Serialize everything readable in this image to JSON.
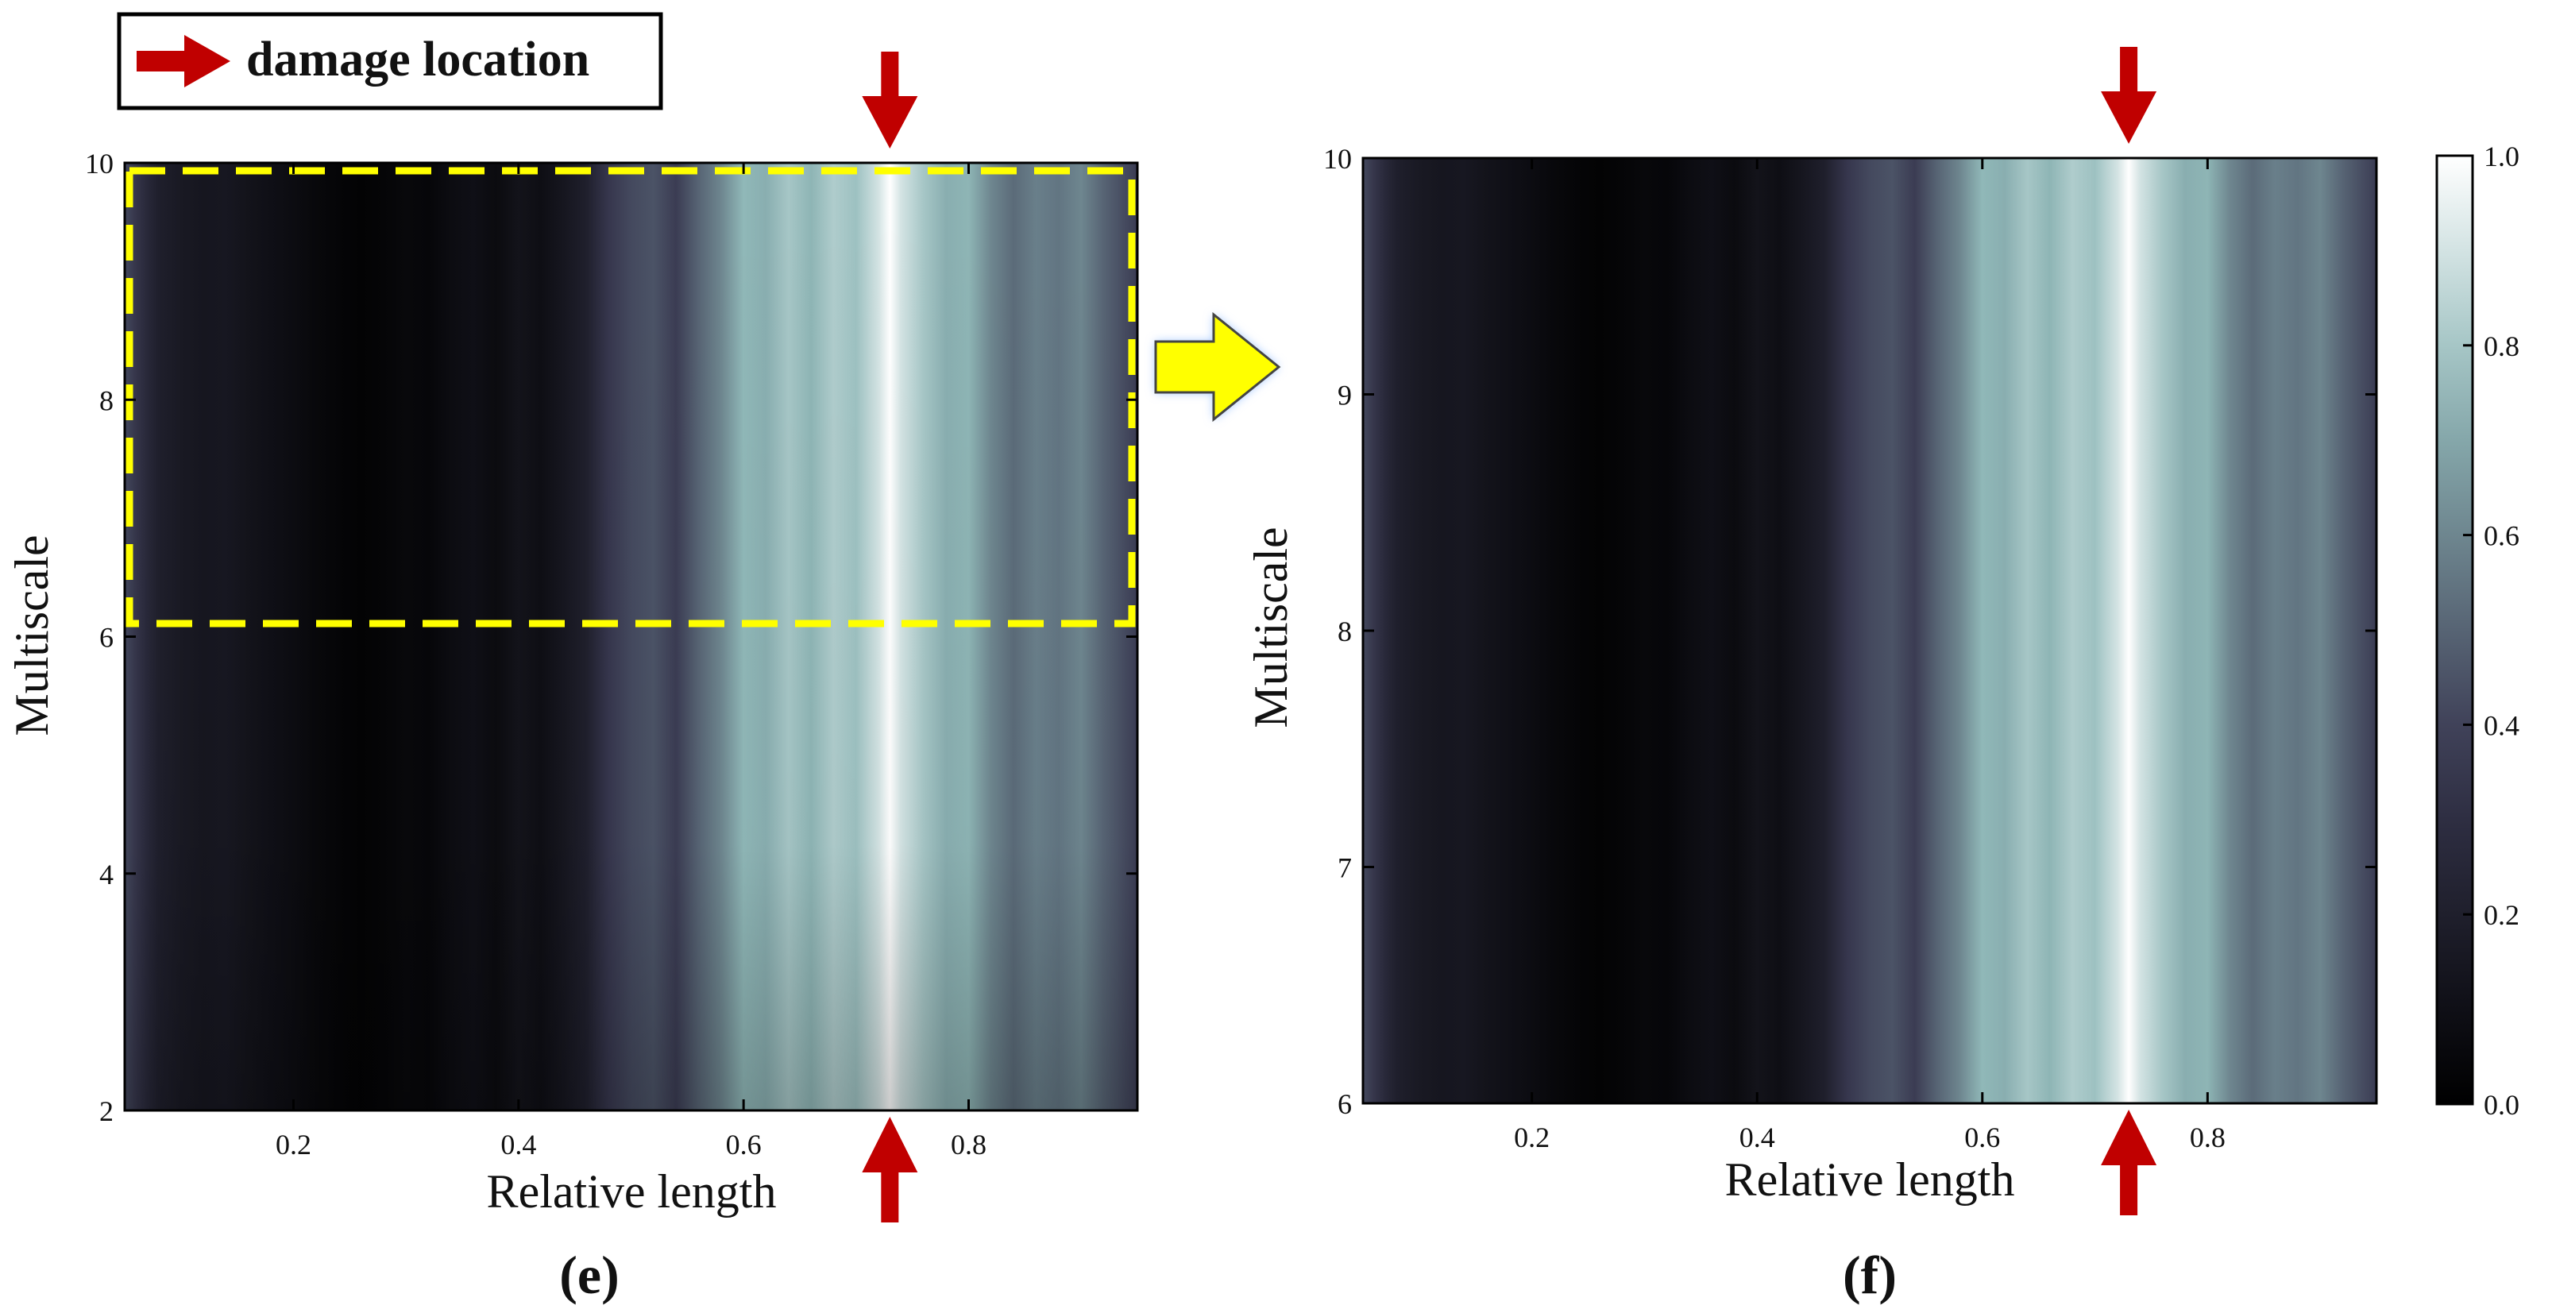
{
  "legend": {
    "label": "damage location"
  },
  "colors": {
    "arrow": "#c00000",
    "highlight_box": "#ffff00",
    "transition_arrow": "#ffff00",
    "transition_glow": "#9cc3ff"
  },
  "intensity_profile": {
    "x": [
      0.05,
      0.06,
      0.07,
      0.08,
      0.1,
      0.12,
      0.14,
      0.16,
      0.18,
      0.2,
      0.22,
      0.24,
      0.26,
      0.28,
      0.3,
      0.32,
      0.34,
      0.36,
      0.38,
      0.4,
      0.42,
      0.44,
      0.46,
      0.48,
      0.5,
      0.52,
      0.54,
      0.56,
      0.58,
      0.6,
      0.62,
      0.64,
      0.66,
      0.68,
      0.7,
      0.72,
      0.73,
      0.74,
      0.76,
      0.78,
      0.8,
      0.82,
      0.84,
      0.86,
      0.88,
      0.9,
      0.92,
      0.94,
      0.95
    ],
    "v": [
      0.42,
      0.34,
      0.26,
      0.2,
      0.16,
      0.14,
      0.15,
      0.12,
      0.1,
      0.08,
      0.05,
      0.03,
      0.02,
      0.03,
      0.05,
      0.04,
      0.08,
      0.1,
      0.07,
      0.12,
      0.09,
      0.14,
      0.2,
      0.35,
      0.42,
      0.45,
      0.38,
      0.5,
      0.6,
      0.75,
      0.72,
      0.8,
      0.74,
      0.82,
      0.78,
      0.9,
      1.0,
      0.9,
      0.8,
      0.72,
      0.74,
      0.6,
      0.52,
      0.58,
      0.55,
      0.6,
      0.5,
      0.42,
      0.38
    ]
  },
  "chart_data": [
    {
      "type": "heatmap",
      "panel_label": "(e)",
      "xlabel": "Relative length",
      "ylabel": "Multiscale",
      "xlim": [
        0.05,
        0.95
      ],
      "ylim": [
        2,
        10
      ],
      "xticks": [
        0.2,
        0.4,
        0.6,
        0.8
      ],
      "xtick_labels": [
        "0.2",
        "0.4",
        "0.6",
        "0.8"
      ],
      "yticks": [
        2,
        4,
        6,
        8,
        10
      ],
      "ytick_labels": [
        "2",
        "4",
        "6",
        "8",
        "10"
      ],
      "damage_location_x": 0.73,
      "highlight_region": {
        "x": [
          0.05,
          0.95
        ],
        "y": [
          6,
          10
        ]
      }
    },
    {
      "type": "heatmap",
      "panel_label": "(f)",
      "xlabel": "Relative length",
      "ylabel": "Multiscale",
      "xlim": [
        0.05,
        0.95
      ],
      "ylim": [
        6,
        10
      ],
      "xticks": [
        0.2,
        0.4,
        0.6,
        0.8
      ],
      "xtick_labels": [
        "0.2",
        "0.4",
        "0.6",
        "0.8"
      ],
      "yticks": [
        6,
        7,
        8,
        9,
        10
      ],
      "ytick_labels": [
        "6",
        "7",
        "8",
        "9",
        "10"
      ],
      "damage_location_x": 0.73,
      "colorbar": {
        "range": [
          0.0,
          1.0
        ],
        "ticks": [
          0.0,
          0.2,
          0.4,
          0.6,
          0.8,
          1.0
        ],
        "tick_labels": [
          "0.0",
          "0.2",
          "0.4",
          "0.6",
          "0.8",
          "1.0"
        ]
      }
    }
  ]
}
